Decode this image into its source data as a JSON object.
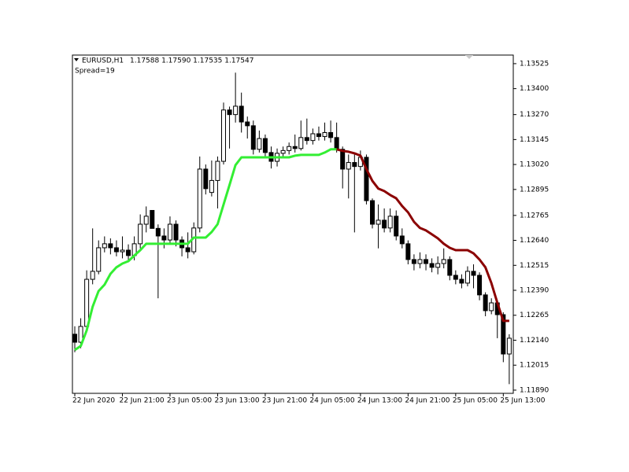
{
  "chart_data": {
    "type": "candlestick",
    "symbol": "EURUSD,H1",
    "quote": "1.17588 1.17590 1.17535 1.17547",
    "spread": "Spread=19",
    "categories": [
      "22 Jun 2020",
      null,
      null,
      null,
      null,
      null,
      null,
      null,
      "22 Jun 21:00",
      null,
      null,
      null,
      null,
      null,
      null,
      null,
      "23 Jun 05:00",
      null,
      null,
      null,
      null,
      null,
      null,
      null,
      "23 Jun 13:00",
      null,
      null,
      null,
      null,
      null,
      null,
      null,
      "23 Jun 21:00",
      null,
      null,
      null,
      null,
      null,
      null,
      null,
      "24 Jun 05:00",
      null,
      null,
      null,
      null,
      null,
      null,
      null,
      "24 Jun 13:00",
      null,
      null,
      null,
      null,
      null,
      null,
      null,
      "24 Jun 21:00",
      null,
      null,
      null,
      null,
      null,
      null,
      null,
      "25 Jun 05:00",
      null,
      null,
      null,
      null,
      null,
      null,
      null,
      "25 Jun 13:00",
      null
    ],
    "open": [
      1.1217,
      1.1213,
      1.12209,
      1.12445,
      1.12485,
      1.12603,
      1.12623,
      1.12603,
      1.12583,
      1.12591,
      1.12564,
      1.12623,
      1.12721,
      1.1279,
      1.127,
      1.12662,
      1.12642,
      1.12721,
      1.12642,
      1.12603,
      1.12583,
      1.12702,
      1.12997,
      1.1288,
      1.1294,
      1.13036,
      1.13293,
      1.1327,
      1.13312,
      1.13233,
      1.13214,
      1.13096,
      1.1315,
      1.1308,
      1.13036,
      1.13076,
      1.1309,
      1.1311,
      1.131,
      1.13155,
      1.1314,
      1.13174,
      1.1316,
      1.1318,
      1.13155,
      1.13096,
      1.12997,
      1.1303,
      1.1301,
      1.13056,
      1.12839,
      1.12721,
      1.12741,
      1.12702,
      1.12761,
      1.12662,
      1.12623,
      1.12544,
      1.12524,
      1.12544,
      1.12524,
      1.12505,
      1.12524,
      1.12544,
      1.12465,
      1.12445,
      1.12426,
      1.12485,
      1.12465,
      1.12367,
      1.12288,
      1.12327,
      1.12268,
      1.12071
    ],
    "high": [
      1.1221,
      1.1225,
      1.1249,
      1.127,
      1.1264,
      1.1266,
      1.1265,
      1.1264,
      1.1266,
      1.1262,
      1.1266,
      1.1277,
      1.1281,
      1.1279,
      1.1272,
      1.127,
      1.1276,
      1.1274,
      1.1266,
      1.1268,
      1.1273,
      1.1306,
      1.1302,
      1.1304,
      1.1306,
      1.1333,
      1.1331,
      1.1348,
      1.1338,
      1.1326,
      1.1324,
      1.1319,
      1.1317,
      1.1311,
      1.131,
      1.1311,
      1.1313,
      1.1317,
      1.1324,
      1.1325,
      1.132,
      1.1321,
      1.1323,
      1.1324,
      1.1323,
      1.1311,
      1.1307,
      1.1307,
      1.1309,
      1.1307,
      1.1285,
      1.1282,
      1.128,
      1.128,
      1.1279,
      1.127,
      1.1264,
      1.1257,
      1.1258,
      1.1257,
      1.1255,
      1.1256,
      1.126,
      1.1256,
      1.1249,
      1.1247,
      1.1251,
      1.1252,
      1.1248,
      1.1238,
      1.1235,
      1.1234,
      1.1228,
      1.1217
    ],
    "low": [
      1.1208,
      1.121,
      1.1219,
      1.1242,
      1.1247,
      1.1258,
      1.1257,
      1.1256,
      1.1255,
      1.1253,
      1.1254,
      1.126,
      1.1268,
      1.127,
      1.1235,
      1.126,
      1.1262,
      1.1261,
      1.1256,
      1.1255,
      1.1257,
      1.1268,
      1.1287,
      1.1286,
      1.128,
      1.1302,
      1.131,
      1.1323,
      1.1318,
      1.1315,
      1.1307,
      1.1308,
      1.1306,
      1.13,
      1.1301,
      1.1306,
      1.1307,
      1.1308,
      1.1309,
      1.1312,
      1.1312,
      1.1314,
      1.1314,
      1.1313,
      1.1308,
      1.129,
      1.1285,
      1.1268,
      1.1299,
      1.1282,
      1.127,
      1.126,
      1.1268,
      1.1268,
      1.1264,
      1.126,
      1.1252,
      1.1249,
      1.125,
      1.1249,
      1.1248,
      1.1247,
      1.125,
      1.1244,
      1.1242,
      1.124,
      1.1241,
      1.124,
      1.1234,
      1.1226,
      1.1227,
      1.1215,
      1.1203,
      1.1192
    ],
    "close": [
      1.1213,
      1.12209,
      1.12445,
      1.12485,
      1.12603,
      1.12623,
      1.12603,
      1.12583,
      1.12591,
      1.12564,
      1.12623,
      1.12721,
      1.12761,
      1.127,
      1.12662,
      1.12642,
      1.12721,
      1.12642,
      1.12603,
      1.12583,
      1.12702,
      1.12997,
      1.12899,
      1.1294,
      1.13036,
      1.13293,
      1.1327,
      1.13312,
      1.13233,
      1.13214,
      1.13096,
      1.1315,
      1.1308,
      1.13036,
      1.13076,
      1.1309,
      1.1311,
      1.131,
      1.13155,
      1.1314,
      1.13174,
      1.1316,
      1.1318,
      1.13155,
      1.13096,
      1.12997,
      1.1303,
      1.1301,
      1.13056,
      1.12839,
      1.12721,
      1.12741,
      1.12702,
      1.12761,
      1.12662,
      1.12623,
      1.12544,
      1.12524,
      1.12544,
      1.12524,
      1.12505,
      1.12524,
      1.12544,
      1.12465,
      1.12445,
      1.12426,
      1.12485,
      1.12465,
      1.12367,
      1.12288,
      1.12327,
      1.12268,
      1.12071,
      1.1215
    ],
    "up_color": "#ffffff",
    "down_color": "#000000",
    "series": [
      {
        "color": "#33ee33",
        "values": [
          1.12091,
          1.12111,
          1.12189,
          1.12308,
          1.12386,
          1.12418,
          1.12473,
          1.12505,
          1.12524,
          1.12536,
          1.12564,
          1.12591,
          1.12623,
          1.12623,
          1.12623,
          1.12623,
          1.12623,
          1.12623,
          1.12623,
          1.12623,
          1.12654,
          1.12654,
          1.12654,
          1.12682,
          1.12721,
          1.1282,
          1.12918,
          1.13017,
          1.13056,
          1.13056,
          1.13056,
          1.13056,
          1.13056,
          1.13056,
          1.13056,
          1.13056,
          1.13056,
          1.13064,
          1.13068,
          1.13068,
          1.13068,
          1.13068,
          1.1308,
          1.13096,
          1.13096,
          null,
          null,
          null,
          null,
          null,
          null,
          null,
          null,
          null,
          null,
          null,
          null,
          null,
          null,
          null,
          null,
          null,
          null,
          null,
          null,
          null,
          null,
          null,
          null,
          null,
          null,
          null,
          null,
          null
        ]
      },
      {
        "color": "#8b0000",
        "values": [
          null,
          null,
          null,
          null,
          null,
          null,
          null,
          null,
          null,
          null,
          null,
          null,
          null,
          null,
          null,
          null,
          null,
          null,
          null,
          null,
          null,
          null,
          null,
          null,
          null,
          null,
          null,
          null,
          null,
          null,
          null,
          null,
          null,
          null,
          null,
          null,
          null,
          null,
          null,
          null,
          null,
          null,
          null,
          null,
          1.13096,
          1.13088,
          1.13084,
          1.13076,
          1.13064,
          1.12997,
          1.12938,
          1.12899,
          1.12887,
          1.12867,
          1.12851,
          1.12812,
          1.1278,
          1.12733,
          1.12702,
          1.1269,
          1.1267,
          1.1265,
          1.12623,
          1.12603,
          1.12591,
          1.12591,
          1.12591,
          1.12575,
          1.12544,
          1.12505,
          1.12426,
          1.12327,
          1.12237,
          1.12237
        ]
      }
    ],
    "ylim": [
      1.11874,
      1.13568
    ],
    "yticks": [
      {
        "value": 1.13525,
        "label": "1.13525"
      },
      {
        "value": 1.134,
        "label": "1.13400"
      },
      {
        "value": 1.1327,
        "label": "1.13270"
      },
      {
        "value": 1.13145,
        "label": "1.13145"
      },
      {
        "value": 1.1302,
        "label": "1.13020"
      },
      {
        "value": 1.12895,
        "label": "1.12895"
      },
      {
        "value": 1.12765,
        "label": "1.12765"
      },
      {
        "value": 1.1264,
        "label": "1.12640"
      },
      {
        "value": 1.12515,
        "label": "1.12515"
      },
      {
        "value": 1.1239,
        "label": "1.12390"
      },
      {
        "value": 1.12265,
        "label": "1.12265"
      },
      {
        "value": 1.1214,
        "label": "1.12140"
      },
      {
        "value": 1.12015,
        "label": "1.12015"
      },
      {
        "value": 1.1189,
        "label": "1.11890"
      }
    ]
  }
}
